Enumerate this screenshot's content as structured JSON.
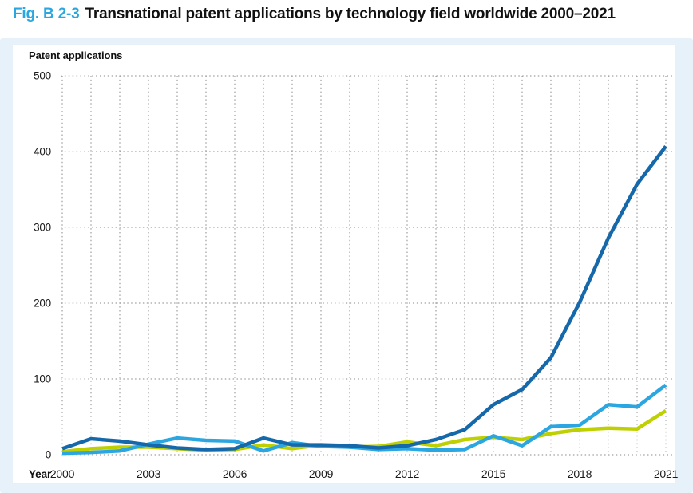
{
  "figure": {
    "fig_label": "Fig. B 2-3",
    "title": "Transnational patent applications by technology field worldwide 2000–2021"
  },
  "axes": {
    "y_axis_title": "Patent applications",
    "x_axis_title": "Year"
  },
  "colors": {
    "fig_label_accent": "#2ba7df",
    "panel_background": "#e7f1f9",
    "card_background": "#ffffff",
    "grid_dots": "#8a8a8a",
    "tick_text": "#1a1a1a",
    "series_dark_blue": "#1568a9",
    "series_light_blue": "#2ca6e0",
    "series_yellow_green": "#bed000"
  },
  "chart_data": {
    "type": "line",
    "title": "Transnational patent applications by technology field worldwide 2000–2021",
    "xlabel": "Year",
    "ylabel": "Patent applications",
    "x": [
      2000,
      2001,
      2002,
      2003,
      2004,
      2005,
      2006,
      2007,
      2008,
      2009,
      2010,
      2011,
      2012,
      2013,
      2014,
      2015,
      2016,
      2017,
      2018,
      2019,
      2020,
      2021
    ],
    "x_tick_labels": [
      2000,
      2003,
      2006,
      2009,
      2012,
      2015,
      2018,
      2021
    ],
    "y_ticks": [
      0,
      100,
      200,
      300,
      400,
      500
    ],
    "ylim": [
      0,
      500
    ],
    "grid": "dotted; vertical line at every year, horizontal line every 100",
    "legend": "none visible in image",
    "series": [
      {
        "name": "yellow-green series",
        "color": "#bed000",
        "values": [
          4,
          8,
          10,
          10,
          8,
          6,
          7,
          13,
          8,
          13,
          10,
          11,
          17,
          12,
          20,
          23,
          20,
          28,
          33,
          35,
          34,
          58
        ]
      },
      {
        "name": "light-blue series",
        "color": "#2ca6e0",
        "values": [
          2,
          3,
          5,
          14,
          22,
          19,
          18,
          5,
          16,
          11,
          10,
          7,
          8,
          6,
          7,
          25,
          12,
          37,
          39,
          66,
          63,
          92
        ]
      },
      {
        "name": "dark-blue series",
        "color": "#1568a9",
        "values": [
          8,
          21,
          18,
          13,
          9,
          7,
          8,
          22,
          13,
          13,
          12,
          9,
          12,
          20,
          33,
          66,
          86,
          128,
          201,
          286,
          357,
          407
        ]
      }
    ]
  }
}
